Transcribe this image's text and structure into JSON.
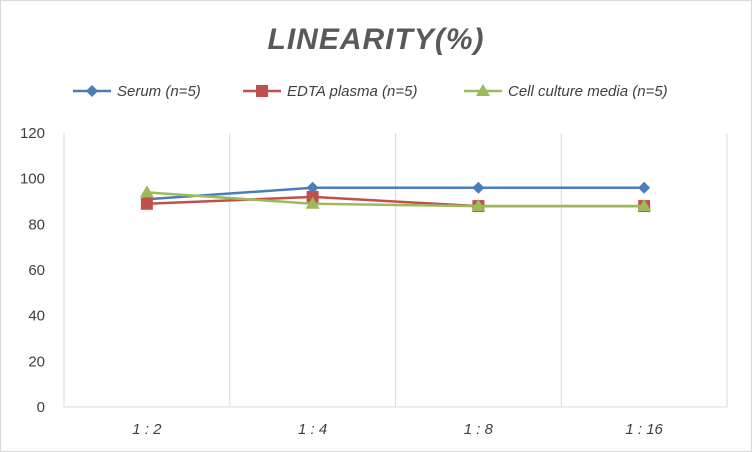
{
  "chart_data": {
    "type": "line",
    "title": "LINEARITY(%)",
    "categories": [
      "1:2",
      "1:4",
      "1:8",
      "1:16"
    ],
    "series": [
      {
        "name": "Serum (n=5)",
        "values": [
          91,
          96,
          96,
          96
        ],
        "color": "#4a7ebb",
        "marker": "diamond"
      },
      {
        "name": "EDTA plasma (n=5)",
        "values": [
          89,
          92,
          88,
          88
        ],
        "color": "#c0504d",
        "marker": "square"
      },
      {
        "name": "Cell culture media (n=5)",
        "values": [
          94,
          89,
          88,
          88
        ],
        "color": "#9bbb59",
        "marker": "triangle"
      }
    ],
    "ylim": [
      0,
      120
    ],
    "yticks": [
      "0",
      "20",
      "40",
      "60",
      "80",
      "100",
      "120"
    ],
    "xlabel": "",
    "ylabel": "",
    "grid": "vertical",
    "legend": "top"
  }
}
